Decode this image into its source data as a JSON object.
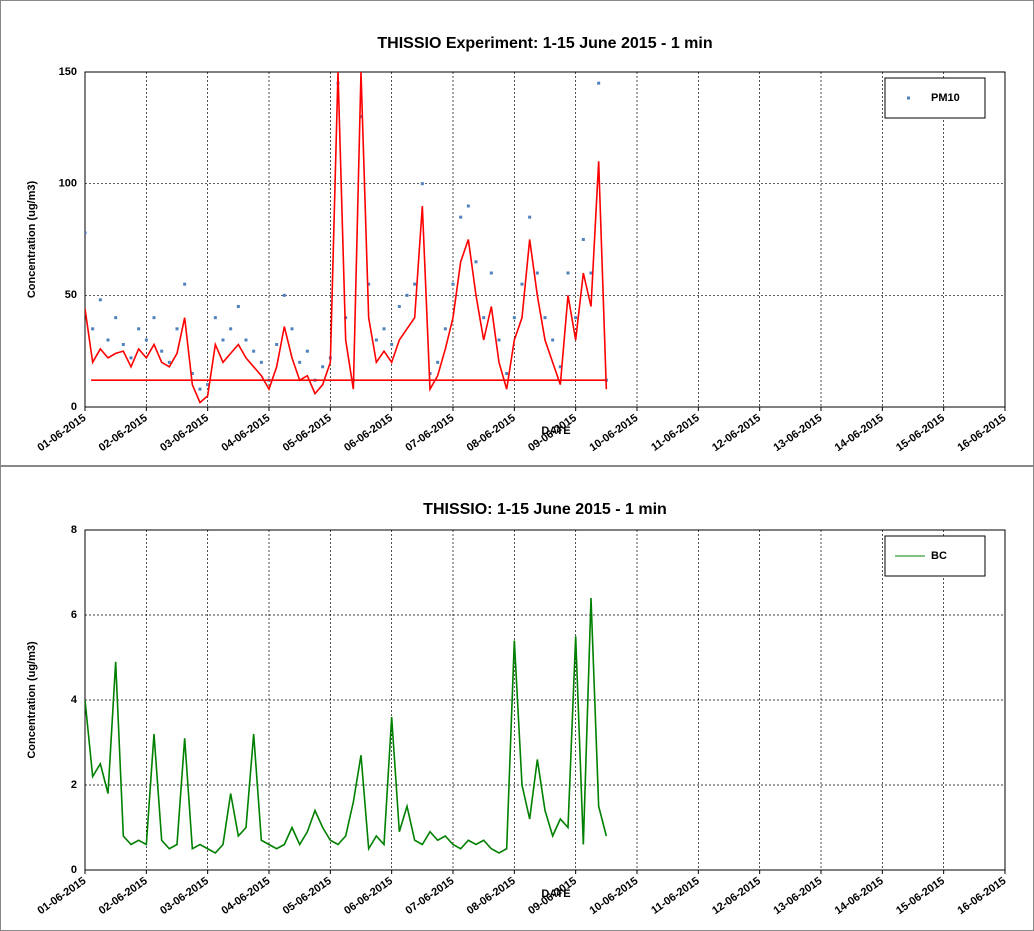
{
  "chart_data": [
    {
      "type": "scatter",
      "title": "THISSIO Experiment: 1-15 June 2015 - 1 min",
      "x_label": "DATE",
      "y_label": "Concentration (ug/m3)",
      "xlim": [
        0,
        15
      ],
      "ylim": [
        0,
        150
      ],
      "yticks": [
        0,
        50,
        100,
        150
      ],
      "grid": true,
      "legend": "top-right",
      "xticks": [
        {
          "value": 0,
          "label": "01-06-2015"
        },
        {
          "value": 1,
          "label": "02-06-2015"
        },
        {
          "value": 2,
          "label": "03-06-2015"
        },
        {
          "value": 3,
          "label": "04-06-2015"
        },
        {
          "value": 4,
          "label": "05-06-2015"
        },
        {
          "value": 5,
          "label": "06-06-2015"
        },
        {
          "value": 6,
          "label": "07-06-2015"
        },
        {
          "value": 7,
          "label": "08-06-2015"
        },
        {
          "value": 8,
          "label": "09-06-2015"
        },
        {
          "value": 9,
          "label": "10-06-2015"
        },
        {
          "value": 10,
          "label": "11-06-2015"
        },
        {
          "value": 11,
          "label": "12-06-2015"
        },
        {
          "value": 12,
          "label": "13-06-2015"
        },
        {
          "value": 13,
          "label": "14-06-2015"
        },
        {
          "value": 14,
          "label": "15-06-2015"
        },
        {
          "value": 15,
          "label": "16-06-2015"
        }
      ],
      "x": [
        0,
        0.125,
        0.25,
        0.375,
        0.5,
        0.625,
        0.75,
        0.875,
        1,
        1.125,
        1.25,
        1.375,
        1.5,
        1.625,
        1.75,
        1.875,
        2,
        2.125,
        2.25,
        2.375,
        2.5,
        2.625,
        2.75,
        2.875,
        3,
        3.125,
        3.25,
        3.375,
        3.5,
        3.625,
        3.75,
        3.875,
        4,
        4.125,
        4.25,
        4.375,
        4.5,
        4.625,
        4.75,
        4.875,
        5,
        5.125,
        5.25,
        5.375,
        5.5,
        5.625,
        5.75,
        5.875,
        6,
        6.125,
        6.25,
        6.375,
        6.5,
        6.625,
        6.75,
        6.875,
        7,
        7.125,
        7.25,
        7.375,
        7.5,
        7.625,
        7.75,
        7.875,
        8,
        8.125,
        8.25,
        8.375,
        8.5
      ],
      "series": [
        {
          "name": "PM10",
          "type": "scatter",
          "color": "#4f81bd",
          "values": [
            78,
            35,
            48,
            30,
            40,
            28,
            22,
            35,
            30,
            40,
            25,
            20,
            35,
            55,
            15,
            8,
            10,
            40,
            30,
            35,
            45,
            30,
            25,
            20,
            12,
            28,
            50,
            35,
            20,
            25,
            12,
            18,
            22,
            145,
            40,
            12,
            130,
            55,
            30,
            35,
            28,
            45,
            50,
            55,
            100,
            15,
            20,
            35,
            55,
            85,
            90,
            65,
            40,
            60,
            30,
            15,
            40,
            55,
            85,
            60,
            40,
            30,
            18,
            60,
            40,
            75,
            60,
            145,
            12
          ]
        },
        {
          "type": "line",
          "color": "#ff0000",
          "values": [
            44,
            20,
            26,
            22,
            24,
            25,
            18,
            26,
            22,
            28,
            20,
            18,
            24,
            40,
            10,
            2,
            5,
            28,
            20,
            24,
            28,
            22,
            18,
            14,
            8,
            18,
            36,
            22,
            12,
            14,
            6,
            10,
            20,
            150,
            30,
            8,
            150,
            40,
            20,
            25,
            20,
            30,
            35,
            40,
            90,
            8,
            14,
            26,
            40,
            65,
            75,
            50,
            30,
            45,
            20,
            8,
            30,
            40,
            75,
            50,
            30,
            20,
            10,
            50,
            30,
            60,
            45,
            110,
            8
          ]
        },
        {
          "type": "line",
          "color": "#ff0000",
          "x": [
            0.1,
            8.5
          ],
          "values": [
            12,
            12
          ]
        }
      ]
    },
    {
      "type": "line",
      "title": "THISSIO: 1-15 June 2015 - 1 min",
      "x_label": "DATE",
      "y_label": "Concentration (ug/m3)",
      "xlim": [
        0,
        15
      ],
      "ylim": [
        0,
        8
      ],
      "yticks": [
        0,
        2,
        4,
        6,
        8
      ],
      "grid": true,
      "legend": "top-right",
      "xticks": [
        {
          "value": 0,
          "label": "01-06-2015"
        },
        {
          "value": 1,
          "label": "02-06-2015"
        },
        {
          "value": 2,
          "label": "03-06-2015"
        },
        {
          "value": 3,
          "label": "04-06-2015"
        },
        {
          "value": 4,
          "label": "05-06-2015"
        },
        {
          "value": 5,
          "label": "06-06-2015"
        },
        {
          "value": 6,
          "label": "07-06-2015"
        },
        {
          "value": 7,
          "label": "08-06-2015"
        },
        {
          "value": 8,
          "label": "09-06-2015"
        },
        {
          "value": 9,
          "label": "10-06-2015"
        },
        {
          "value": 10,
          "label": "11-06-2015"
        },
        {
          "value": 11,
          "label": "12-06-2015"
        },
        {
          "value": 12,
          "label": "13-06-2015"
        },
        {
          "value": 13,
          "label": "14-06-2015"
        },
        {
          "value": 14,
          "label": "15-06-2015"
        },
        {
          "value": 15,
          "label": "16-06-2015"
        }
      ],
      "x": [
        0,
        0.125,
        0.25,
        0.375,
        0.5,
        0.625,
        0.75,
        0.875,
        1,
        1.125,
        1.25,
        1.375,
        1.5,
        1.625,
        1.75,
        1.875,
        2,
        2.125,
        2.25,
        2.375,
        2.5,
        2.625,
        2.75,
        2.875,
        3,
        3.125,
        3.25,
        3.375,
        3.5,
        3.625,
        3.75,
        3.875,
        4,
        4.125,
        4.25,
        4.375,
        4.5,
        4.625,
        4.75,
        4.875,
        5,
        5.125,
        5.25,
        5.375,
        5.5,
        5.625,
        5.75,
        5.875,
        6,
        6.125,
        6.25,
        6.375,
        6.5,
        6.625,
        6.75,
        6.875,
        7,
        7.125,
        7.25,
        7.375,
        7.5,
        7.625,
        7.75,
        7.875,
        8,
        8.125,
        8.25,
        8.375,
        8.5
      ],
      "series": [
        {
          "name": "BC",
          "type": "line",
          "color": "#008000",
          "values": [
            4.0,
            2.2,
            2.5,
            1.8,
            4.9,
            0.8,
            0.6,
            0.7,
            0.6,
            3.2,
            0.7,
            0.5,
            0.6,
            3.1,
            0.5,
            0.6,
            0.5,
            0.4,
            0.6,
            1.8,
            0.8,
            1.0,
            3.2,
            0.7,
            0.6,
            0.5,
            0.6,
            1.0,
            0.6,
            0.9,
            1.4,
            1.0,
            0.7,
            0.6,
            0.8,
            1.6,
            2.7,
            0.5,
            0.8,
            0.6,
            3.6,
            0.9,
            1.5,
            0.7,
            0.6,
            0.9,
            0.7,
            0.8,
            0.6,
            0.5,
            0.7,
            0.6,
            0.7,
            0.5,
            0.4,
            0.5,
            5.4,
            2.0,
            1.2,
            2.6,
            1.4,
            0.8,
            1.2,
            1.0,
            5.5,
            0.6,
            6.4,
            1.5,
            0.8
          ]
        }
      ]
    }
  ]
}
